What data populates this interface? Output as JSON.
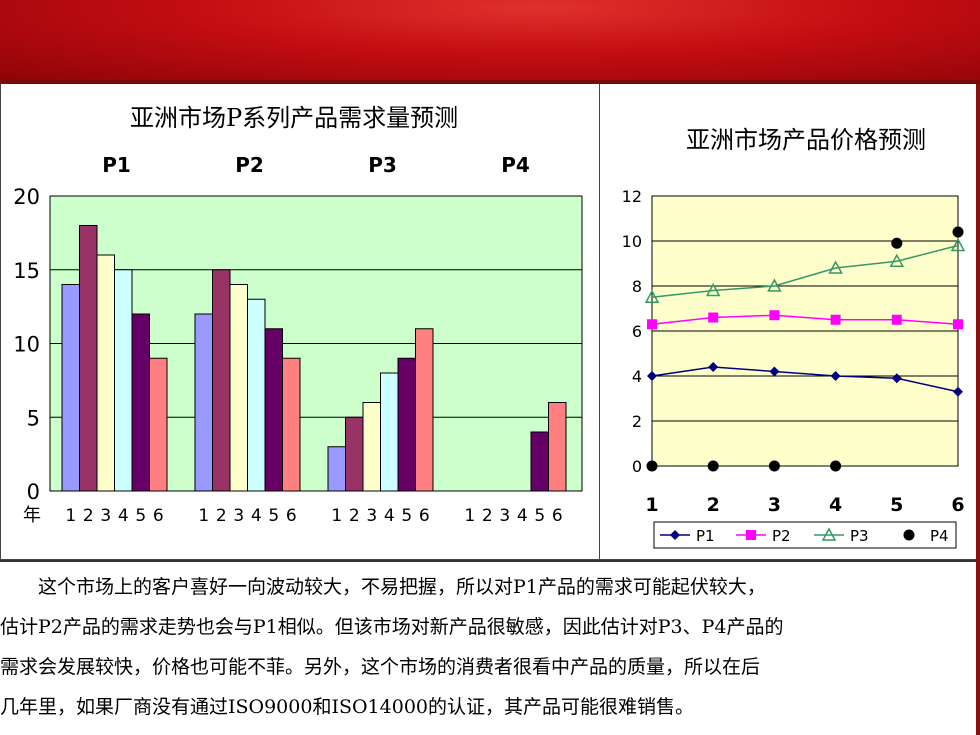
{
  "chart_data": [
    {
      "type": "bar",
      "title": "亚洲市场P系列产品需求量预测",
      "groups": [
        "P1",
        "P2",
        "P3",
        "P4"
      ],
      "year_axis_label": "年",
      "year_ticks": [
        "1",
        "2",
        "3",
        "4",
        "5",
        "6"
      ],
      "ylim": [
        0,
        20
      ],
      "yticks": [
        "0",
        "5",
        "10",
        "15",
        "20"
      ],
      "grid": true,
      "plot_bg": "#ccffcc",
      "bar_colors": [
        "#9999ff",
        "#993366",
        "#ffffcc",
        "#ccffff",
        "#660066",
        "#ff8080"
      ],
      "values": {
        "P1": [
          14,
          18,
          16,
          15,
          12,
          9
        ],
        "P2": [
          12,
          15,
          14,
          13,
          11,
          9
        ],
        "P3": [
          3,
          5,
          6,
          8,
          9,
          11
        ],
        "P4": [
          null,
          null,
          null,
          null,
          4,
          6
        ]
      }
    },
    {
      "type": "line",
      "title": "亚洲市场产品价格预测",
      "x": [
        "1",
        "2",
        "3",
        "4",
        "5",
        "6"
      ],
      "ylim": [
        0,
        12
      ],
      "yticks": [
        "0",
        "2",
        "4",
        "6",
        "8",
        "10",
        "12"
      ],
      "grid": true,
      "plot_bg": "#ffffcc",
      "legend_position": "bottom",
      "series": [
        {
          "name": "P1",
          "color": "#000080",
          "marker": "diamond",
          "line": true,
          "values": [
            4.0,
            4.4,
            4.2,
            4.0,
            3.9,
            3.3
          ]
        },
        {
          "name": "P2",
          "color": "#ff00ff",
          "marker": "square",
          "line": true,
          "values": [
            6.3,
            6.6,
            6.7,
            6.5,
            6.5,
            6.3
          ]
        },
        {
          "name": "P3",
          "color": "#339966",
          "marker": "triangle",
          "line": true,
          "values": [
            7.5,
            7.8,
            8.0,
            8.8,
            9.1,
            9.8
          ]
        },
        {
          "name": "P4",
          "color": "#000000",
          "marker": "circle",
          "line": false,
          "values": [
            0,
            0,
            0,
            0,
            9.9,
            10.4
          ]
        }
      ]
    }
  ],
  "description_lines": [
    "　　这个市场上的客户喜好一向波动较大，不易把握，所以对P1产品的需求可能起伏较大，",
    "估计P2产品的需求走势也会与P1相似。但该市场对新产品很敏感，因此估计对P3、P4产品的",
    "需求会发展较快，价格也可能不菲。另外，这个市场的消费者很看中产品的质量，所以在后",
    "几年里，如果厂商没有通过ISO9000和ISO14000的认证，其产品可能很难销售。"
  ],
  "colors": {
    "banner": "#c40d12"
  }
}
